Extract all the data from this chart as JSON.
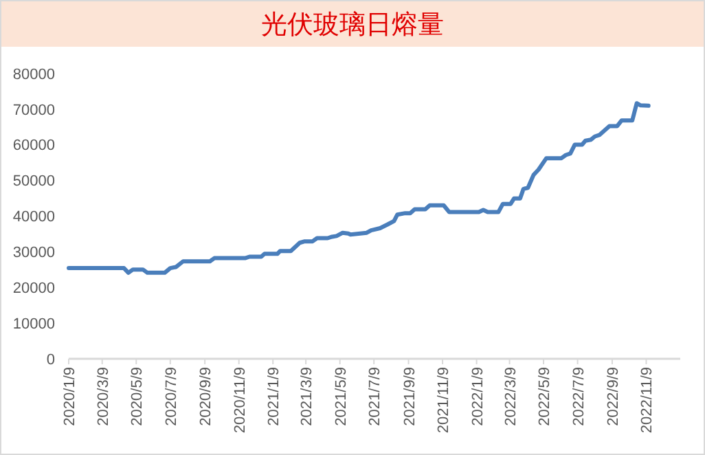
{
  "chart_data": {
    "type": "line",
    "title": "光伏玻璃日熔量",
    "x": [
      "2020-01-09",
      "2020-04-17",
      "2020-04-25",
      "2020-05-03",
      "2020-05-21",
      "2020-05-29",
      "2020-06-29",
      "2020-07-09",
      "2020-07-19",
      "2020-08-01",
      "2020-09-18",
      "2020-09-26",
      "2020-11-20",
      "2020-11-28",
      "2020-12-19",
      "2020-12-25",
      "2021-01-17",
      "2021-01-22",
      "2021-02-10",
      "2021-02-26",
      "2021-03-07",
      "2021-03-21",
      "2021-03-29",
      "2021-04-17",
      "2021-04-25",
      "2021-05-03",
      "2021-05-14",
      "2021-05-24",
      "2021-05-28",
      "2021-06-26",
      "2021-07-04",
      "2021-07-20",
      "2021-08-02",
      "2021-08-14",
      "2021-08-20",
      "2021-09-03",
      "2021-09-12",
      "2021-09-20",
      "2021-10-09",
      "2021-10-17",
      "2021-11-11",
      "2021-11-21",
      "2022-01-13",
      "2022-01-21",
      "2022-01-29",
      "2022-02-17",
      "2022-02-25",
      "2022-03-11",
      "2022-03-17",
      "2022-03-28",
      "2022-04-03",
      "2022-04-11",
      "2022-04-21",
      "2022-04-30",
      "2022-05-14",
      "2022-06-10",
      "2022-06-18",
      "2022-06-26",
      "2022-07-04",
      "2022-07-17",
      "2022-07-23",
      "2022-08-02",
      "2022-08-09",
      "2022-08-17",
      "2022-09-04",
      "2022-09-18",
      "2022-09-26",
      "2022-10-15",
      "2022-10-23",
      "2022-10-30",
      "2022-11-13"
    ],
    "series": [
      {
        "color": "#4a7ebb",
        "values": [
          25400,
          25400,
          24100,
          25000,
          25000,
          24100,
          24100,
          25400,
          25700,
          27300,
          27300,
          28200,
          28200,
          28600,
          28600,
          29400,
          29400,
          30200,
          30200,
          32500,
          32900,
          32900,
          33800,
          33800,
          34200,
          34400,
          35300,
          35100,
          34800,
          35300,
          36000,
          36600,
          37600,
          38600,
          40400,
          40800,
          40800,
          41900,
          41900,
          43000,
          43000,
          41100,
          41100,
          41700,
          41100,
          41100,
          43400,
          43400,
          44900,
          44900,
          47600,
          47900,
          51500,
          53000,
          56200,
          56200,
          57100,
          57500,
          60000,
          60000,
          61100,
          61400,
          62300,
          62700,
          65200,
          65200,
          66800,
          66800,
          71600,
          71000,
          70900
        ]
      }
    ],
    "xlim": [
      "2020-01-09",
      "2023-01-09"
    ],
    "xticks": [
      {
        "value": "2020-01-09",
        "label": "2020/1/9"
      },
      {
        "value": "2020-03-09",
        "label": "2020/3/9"
      },
      {
        "value": "2020-05-09",
        "label": "2020/5/9"
      },
      {
        "value": "2020-07-09",
        "label": "2020/7/9"
      },
      {
        "value": "2020-09-09",
        "label": "2020/9/9"
      },
      {
        "value": "2020-11-09",
        "label": "2020/11/9"
      },
      {
        "value": "2021-01-09",
        "label": "2021/1/9"
      },
      {
        "value": "2021-03-09",
        "label": "2021/3/9"
      },
      {
        "value": "2021-05-09",
        "label": "2021/5/9"
      },
      {
        "value": "2021-07-09",
        "label": "2021/7/9"
      },
      {
        "value": "2021-09-09",
        "label": "2021/9/9"
      },
      {
        "value": "2021-11-09",
        "label": "2021/11/9"
      },
      {
        "value": "2022-01-09",
        "label": "2022/1/9"
      },
      {
        "value": "2022-03-09",
        "label": "2022/3/9"
      },
      {
        "value": "2022-05-09",
        "label": "2022/5/9"
      },
      {
        "value": "2022-07-09",
        "label": "2022/7/9"
      },
      {
        "value": "2022-09-09",
        "label": "2022/9/9"
      },
      {
        "value": "2022-11-09",
        "label": "2022/11/9"
      }
    ],
    "ylim": [
      0,
      80000
    ],
    "yticks": [
      0,
      10000,
      20000,
      30000,
      40000,
      50000,
      60000,
      70000,
      80000
    ]
  }
}
